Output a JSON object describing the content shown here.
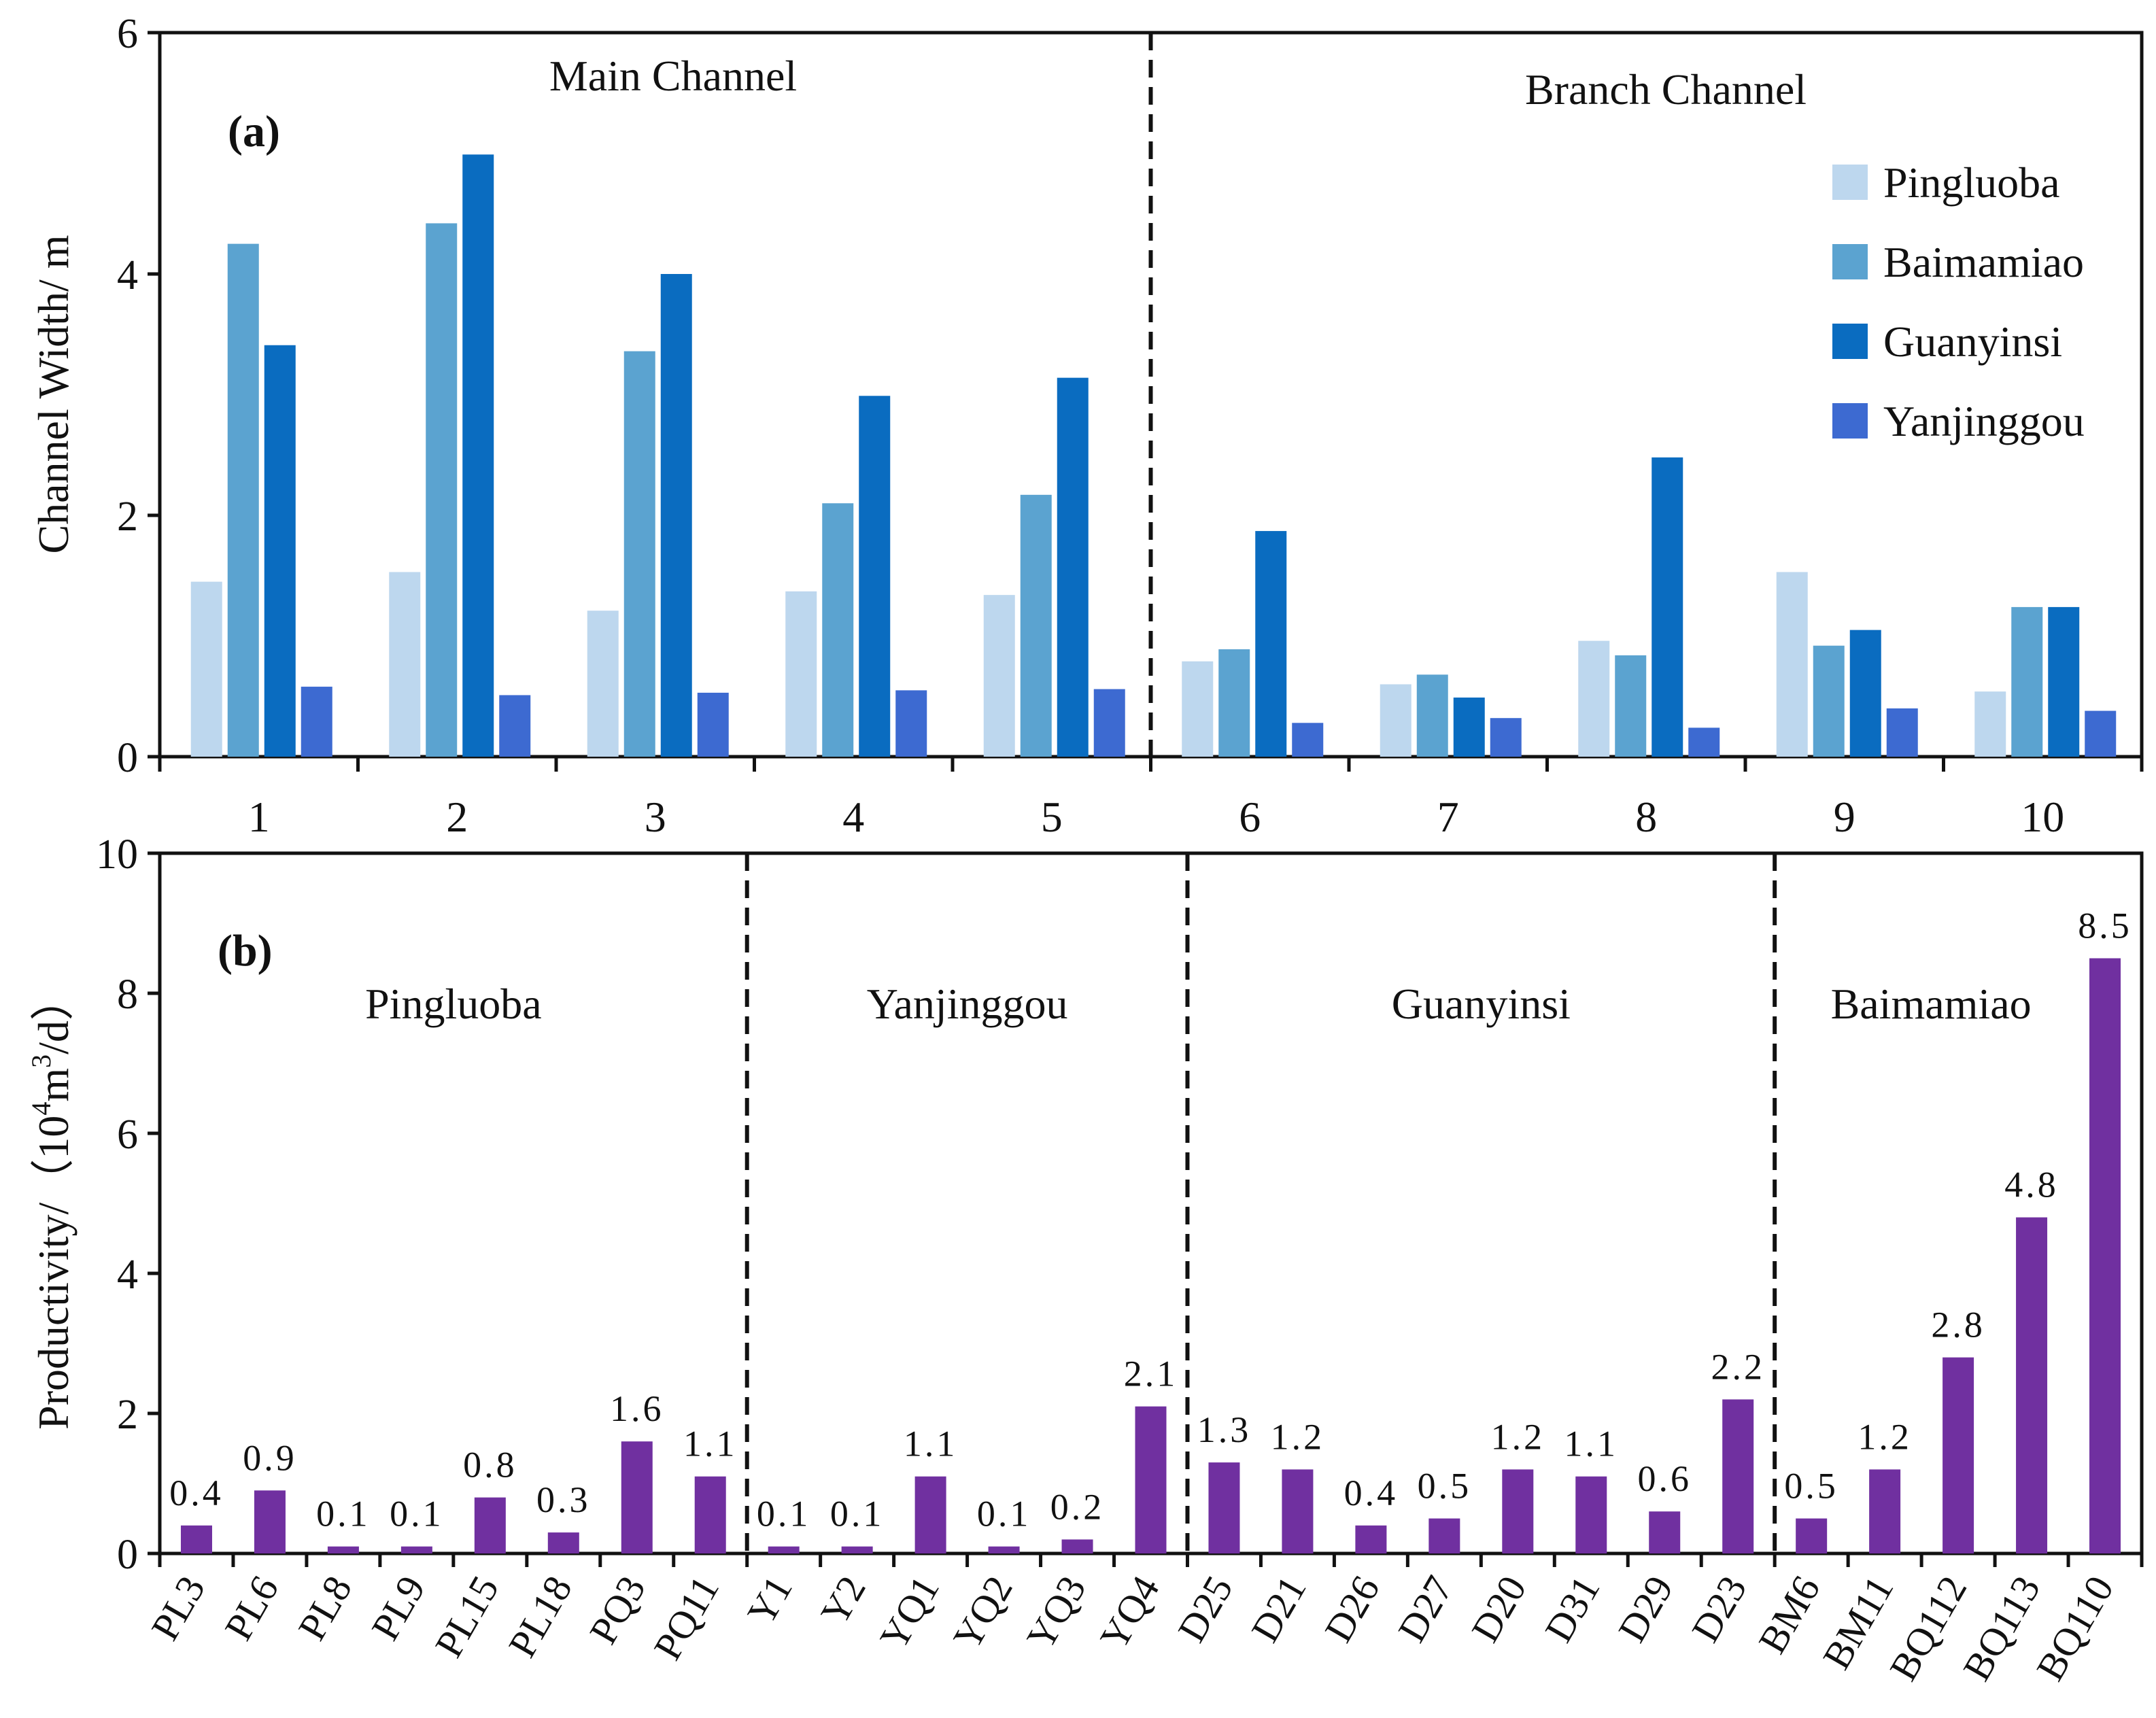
{
  "chart_data": [
    {
      "type": "bar",
      "panel_label": "(a)",
      "ylabel": "Channel  Width/ m",
      "ylim": [
        0,
        6
      ],
      "yticks": [
        "0",
        "2",
        "4",
        "6"
      ],
      "categories": [
        "1",
        "2",
        "3",
        "4",
        "5",
        "6",
        "7",
        "8",
        "9",
        "10"
      ],
      "section_titles": [
        "Main Channel",
        "Branch Channel"
      ],
      "legend_position": "top-right",
      "series": [
        {
          "name": "Pingluoba",
          "color": "#bdd7ee",
          "values": [
            1.45,
            1.53,
            1.21,
            1.37,
            1.34,
            0.79,
            0.6,
            0.96,
            1.53,
            0.54
          ]
        },
        {
          "name": "Baimamiao",
          "color": "#5ba3d0",
          "values": [
            4.25,
            4.42,
            3.36,
            2.1,
            2.17,
            0.89,
            0.68,
            0.84,
            0.92,
            1.24
          ]
        },
        {
          "name": "Guanyinsi",
          "color": "#0a6cc0",
          "values": [
            3.41,
            4.99,
            4.0,
            2.99,
            3.14,
            1.87,
            0.49,
            2.48,
            1.05,
            1.24
          ]
        },
        {
          "name": "Yanjinggou",
          "color": "#3d6ad1",
          "values": [
            0.58,
            0.51,
            0.53,
            0.55,
            0.56,
            0.28,
            0.32,
            0.24,
            0.4,
            0.38
          ]
        }
      ]
    },
    {
      "type": "bar",
      "panel_label": "(b)",
      "ylabel_main": "Productivity/（10",
      "ylabel_sup": "4",
      "ylabel_mid": "m",
      "ylabel_sup2": "3",
      "ylabel_end": "/d）",
      "ylim": [
        0,
        10
      ],
      "yticks": [
        "0",
        "2",
        "4",
        "6",
        "8",
        "10"
      ],
      "bar_color": "#7030a0",
      "groups": [
        {
          "name": "Pingluoba",
          "count": 8
        },
        {
          "name": "Yanjinggou",
          "count": 6
        },
        {
          "name": "Guanyinsi",
          "count": 8
        },
        {
          "name": "Baimamiao",
          "count": 5
        }
      ],
      "categories": [
        "PL3",
        "PL6",
        "PL8",
        "PL9",
        "PL15",
        "PL18",
        "PQ3",
        "PQ11",
        "Y1",
        "Y2",
        "YQ1",
        "YQ2",
        "YQ3",
        "YQ4",
        "D25",
        "D21",
        "D26",
        "D27",
        "D20",
        "D31",
        "D29",
        "D23",
        "BM6",
        "BM11",
        "BQ112",
        "BQ113",
        "BQ110"
      ],
      "values": [
        0.4,
        0.9,
        0.1,
        0.1,
        0.8,
        0.3,
        1.6,
        1.1,
        0.1,
        0.1,
        1.1,
        0.1,
        0.2,
        2.1,
        1.3,
        1.2,
        0.4,
        0.5,
        1.2,
        1.1,
        0.6,
        2.2,
        0.5,
        1.2,
        2.8,
        4.8,
        8.5
      ],
      "data_labels": [
        "0.4",
        "0.9",
        "0.1",
        "0.1",
        "0.8",
        "0.3",
        "1.6",
        "1.1",
        "0.1",
        "0.1",
        "1.1",
        "0.1",
        "0.2",
        "2.1",
        "1.3",
        "1.2",
        "0.4",
        "0.5",
        "1.2",
        "1.1",
        "0.6",
        "2.2",
        "0.5",
        "1.2",
        "2.8",
        "4.8",
        "8.5"
      ]
    }
  ]
}
